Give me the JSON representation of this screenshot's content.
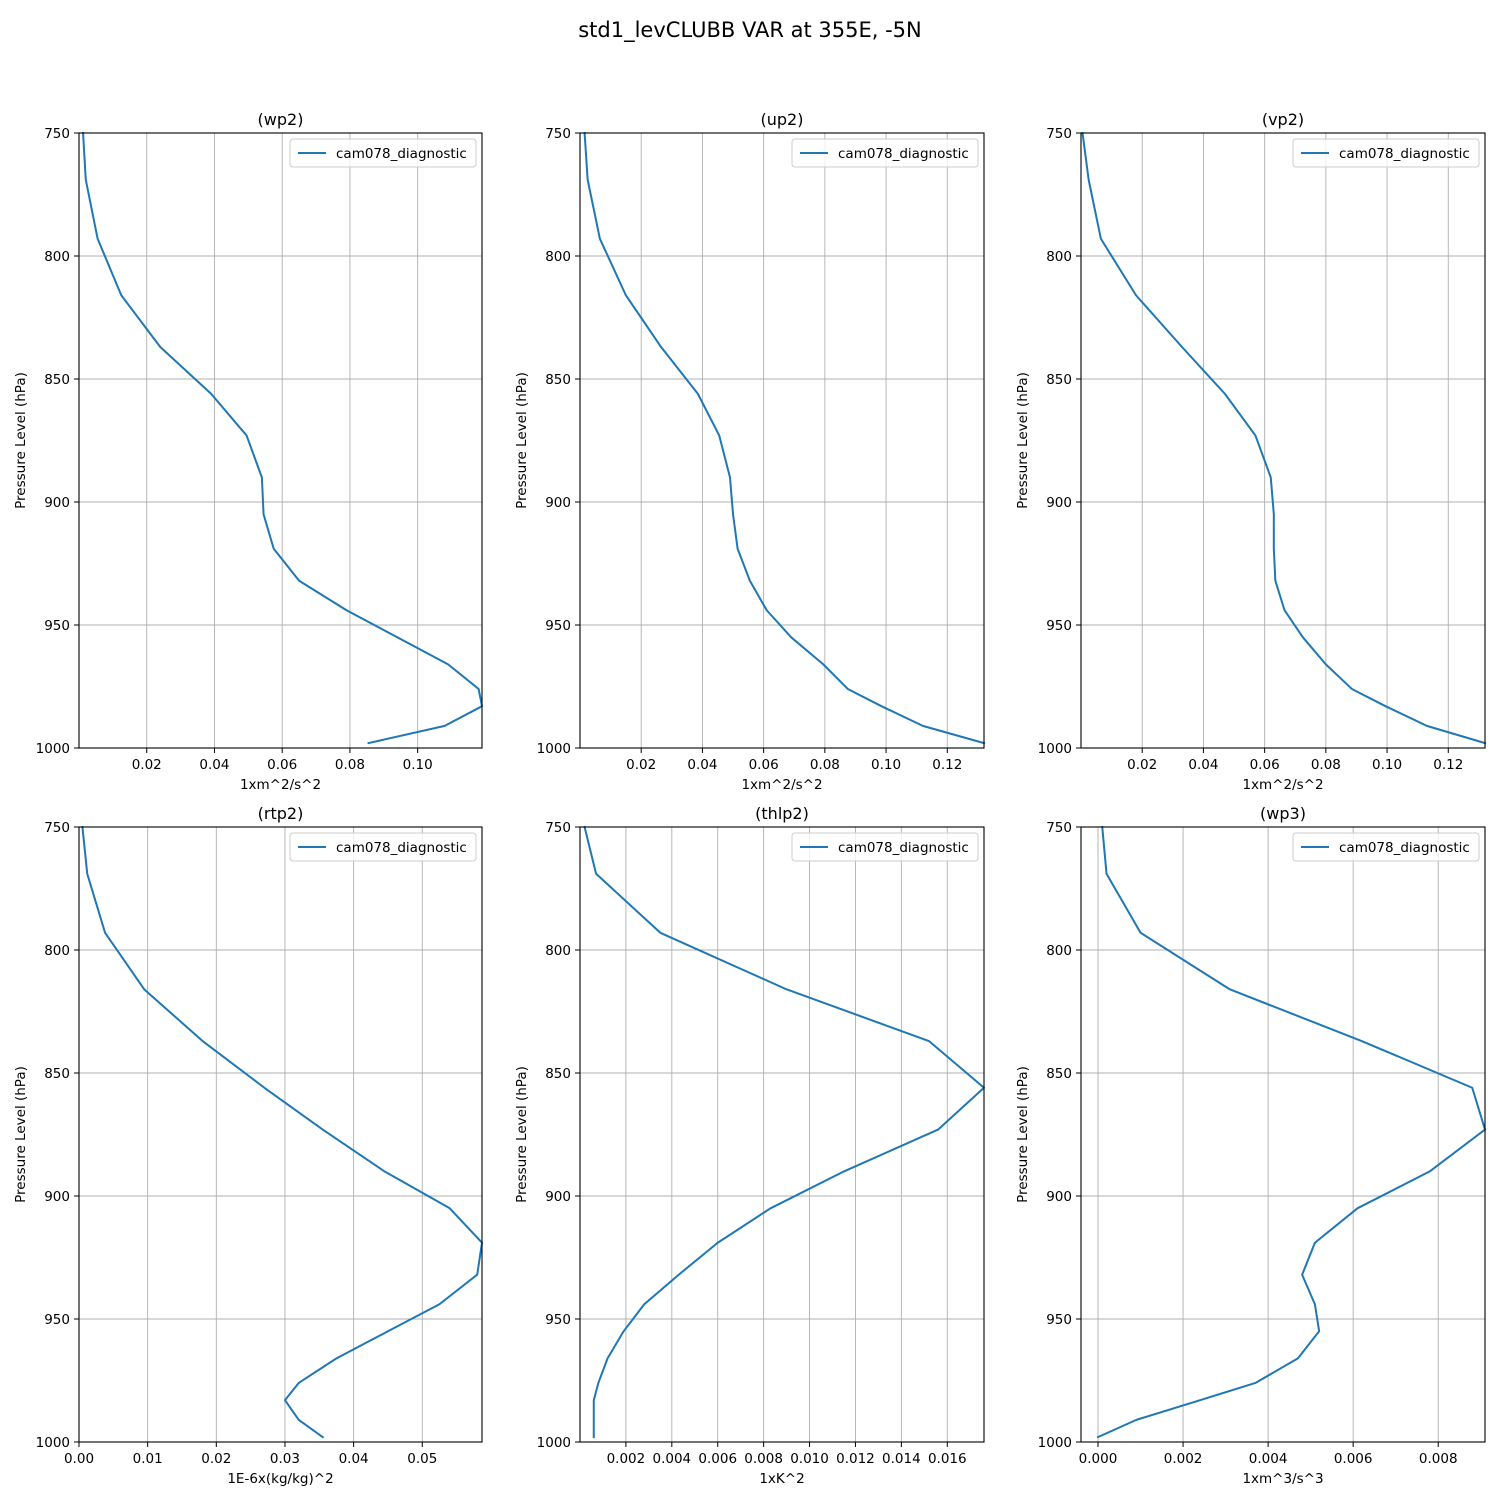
{
  "figure": {
    "title": "std1_levCLUBB VAR at 355E, -5N"
  },
  "styles": {
    "line_color": "#1f77b4",
    "grid_color": "#b0b0b0",
    "axis_color": "#000000"
  },
  "chart_data": [
    {
      "type": "line",
      "title": "(wp2)",
      "xlabel": "1xm^2/s^2",
      "ylabel": "Pressure Level (hPa)",
      "xlim": [
        0.0,
        0.119
      ],
      "ylim": [
        1000,
        750
      ],
      "xticks": [
        0.02,
        0.04,
        0.06,
        0.08,
        0.1
      ],
      "xtick_labels": [
        "0.02",
        "0.04",
        "0.06",
        "0.08",
        "0.10"
      ],
      "yticks": [
        750,
        800,
        850,
        900,
        950,
        1000
      ],
      "ytick_labels": [
        "750",
        "800",
        "850",
        "900",
        "950",
        "1000"
      ],
      "grid": true,
      "legend": "top-right",
      "series": [
        {
          "name": "cam078_diagnostic",
          "x": [
            0.0012,
            0.002,
            0.0055,
            0.0125,
            0.024,
            0.039,
            0.0495,
            0.054,
            0.0545,
            0.0575,
            0.065,
            0.079,
            0.109,
            0.118,
            0.119,
            0.108,
            0.0855
          ],
          "y": [
            750,
            769,
            793,
            816,
            837,
            856,
            873,
            890,
            905,
            919,
            932,
            944,
            966,
            976,
            983,
            991,
            998
          ]
        }
      ]
    },
    {
      "type": "line",
      "title": "(up2)",
      "xlabel": "1xm^2/s^2",
      "ylabel": "Pressure Level (hPa)",
      "xlim": [
        0.0,
        0.132
      ],
      "ylim": [
        1000,
        750
      ],
      "xticks": [
        0.02,
        0.04,
        0.06,
        0.08,
        0.1,
        0.12
      ],
      "xtick_labels": [
        "0.02",
        "0.04",
        "0.06",
        "0.08",
        "0.10",
        "0.12"
      ],
      "yticks": [
        750,
        800,
        850,
        900,
        950,
        1000
      ],
      "ytick_labels": [
        "750",
        "800",
        "850",
        "900",
        "950",
        "1000"
      ],
      "grid": true,
      "legend": "top-right",
      "series": [
        {
          "name": "cam078_diagnostic",
          "x": [
            0.0015,
            0.0025,
            0.0065,
            0.015,
            0.0265,
            0.0385,
            0.0455,
            0.049,
            0.05,
            0.0515,
            0.0555,
            0.061,
            0.069,
            0.0795,
            0.0875,
            0.0985,
            0.112,
            0.132
          ],
          "y": [
            750,
            769,
            793,
            816,
            837,
            856,
            873,
            890,
            905,
            919,
            932,
            944,
            955,
            966,
            976,
            983,
            991,
            998
          ]
        }
      ]
    },
    {
      "type": "line",
      "title": "(vp2)",
      "xlabel": "1xm^2/s^2",
      "ylabel": "Pressure Level (hPa)",
      "xlim": [
        0.0,
        0.132
      ],
      "ylim": [
        1000,
        750
      ],
      "xticks": [
        0.02,
        0.04,
        0.06,
        0.08,
        0.1,
        0.12
      ],
      "xtick_labels": [
        "0.02",
        "0.04",
        "0.06",
        "0.08",
        "0.10",
        "0.12"
      ],
      "yticks": [
        750,
        800,
        850,
        900,
        950,
        1000
      ],
      "ytick_labels": [
        "750",
        "800",
        "850",
        "900",
        "950",
        "1000"
      ],
      "grid": true,
      "legend": "top-right",
      "series": [
        {
          "name": "cam078_diagnostic",
          "x": [
            0.0005,
            0.0025,
            0.0065,
            0.018,
            0.033,
            0.047,
            0.057,
            0.062,
            0.063,
            0.063,
            0.0635,
            0.0665,
            0.0725,
            0.08,
            0.0885,
            0.0995,
            0.113,
            0.132
          ],
          "y": [
            750,
            769,
            793,
            816,
            837,
            856,
            873,
            890,
            905,
            919,
            932,
            944,
            955,
            966,
            976,
            983,
            991,
            998
          ]
        }
      ]
    },
    {
      "type": "line",
      "title": "(rtp2)",
      "xlabel": "1E-6x(kg/kg)^2",
      "ylabel": "Pressure Level (hPa)",
      "xlim": [
        0.0,
        0.0587
      ],
      "ylim": [
        1000,
        750
      ],
      "xticks": [
        0.0,
        0.01,
        0.02,
        0.03,
        0.04,
        0.05
      ],
      "xtick_labels": [
        "0.00",
        "0.01",
        "0.02",
        "0.03",
        "0.04",
        "0.05"
      ],
      "yticks": [
        750,
        800,
        850,
        900,
        950,
        1000
      ],
      "ytick_labels": [
        "750",
        "800",
        "850",
        "900",
        "950",
        "1000"
      ],
      "grid": true,
      "legend": "top-right",
      "series": [
        {
          "name": "cam078_diagnostic",
          "x": [
            0.0005,
            0.0012,
            0.0038,
            0.0095,
            0.018,
            0.027,
            0.0355,
            0.0445,
            0.054,
            0.0587,
            0.058,
            0.0525,
            0.045,
            0.0375,
            0.032,
            0.03,
            0.032,
            0.0355
          ],
          "y": [
            750,
            769,
            793,
            816,
            837,
            856,
            873,
            890,
            905,
            919,
            932,
            944,
            955,
            966,
            976,
            983,
            991,
            998
          ]
        }
      ]
    },
    {
      "type": "line",
      "title": "(thlp2)",
      "xlabel": "1xK^2",
      "ylabel": "Pressure Level (hPa)",
      "xlim": [
        0.0,
        0.0176
      ],
      "ylim": [
        1000,
        750
      ],
      "xticks": [
        0.002,
        0.004,
        0.006,
        0.008,
        0.01,
        0.012,
        0.014,
        0.016
      ],
      "xtick_labels": [
        "0.002",
        "0.004",
        "0.006",
        "0.008",
        "0.010",
        "0.012",
        "0.014",
        "0.016"
      ],
      "yticks": [
        750,
        800,
        850,
        900,
        950,
        1000
      ],
      "ytick_labels": [
        "750",
        "800",
        "850",
        "900",
        "950",
        "1000"
      ],
      "grid": true,
      "legend": "top-right",
      "series": [
        {
          "name": "cam078_diagnostic",
          "x": [
            0.0002,
            0.0007,
            0.0035,
            0.009,
            0.0152,
            0.0176,
            0.0156,
            0.0115,
            0.0083,
            0.006,
            0.0043,
            0.0028,
            0.0019,
            0.0012,
            0.0008,
            0.0006,
            0.0006,
            0.0006
          ],
          "y": [
            750,
            769,
            793,
            816,
            837,
            856,
            873,
            890,
            905,
            919,
            932,
            944,
            955,
            966,
            976,
            983,
            991,
            998
          ]
        }
      ]
    },
    {
      "type": "line",
      "title": "(wp3)",
      "xlabel": "1xm^3/s^3",
      "ylabel": "Pressure Level (hPa)",
      "xlim": [
        -0.0004,
        0.0091
      ],
      "ylim": [
        1000,
        750
      ],
      "xticks": [
        0.0,
        0.002,
        0.004,
        0.006,
        0.008
      ],
      "xtick_labels": [
        "0.000",
        "0.002",
        "0.004",
        "0.006",
        "0.008"
      ],
      "yticks": [
        750,
        800,
        850,
        900,
        950,
        1000
      ],
      "ytick_labels": [
        "750",
        "800",
        "850",
        "900",
        "950",
        "1000"
      ],
      "grid": true,
      "legend": "top-right",
      "series": [
        {
          "name": "cam078_diagnostic",
          "x": [
            0.0001,
            0.0002,
            0.001,
            0.0031,
            0.0062,
            0.0088,
            0.0091,
            0.0078,
            0.0061,
            0.0051,
            0.0048,
            0.0051,
            0.0052,
            0.0047,
            0.0037,
            0.0024,
            0.0009,
            0.0
          ],
          "y": [
            750,
            769,
            793,
            816,
            837,
            856,
            873,
            890,
            905,
            919,
            932,
            944,
            955,
            966,
            976,
            983,
            991,
            998
          ]
        }
      ]
    }
  ]
}
